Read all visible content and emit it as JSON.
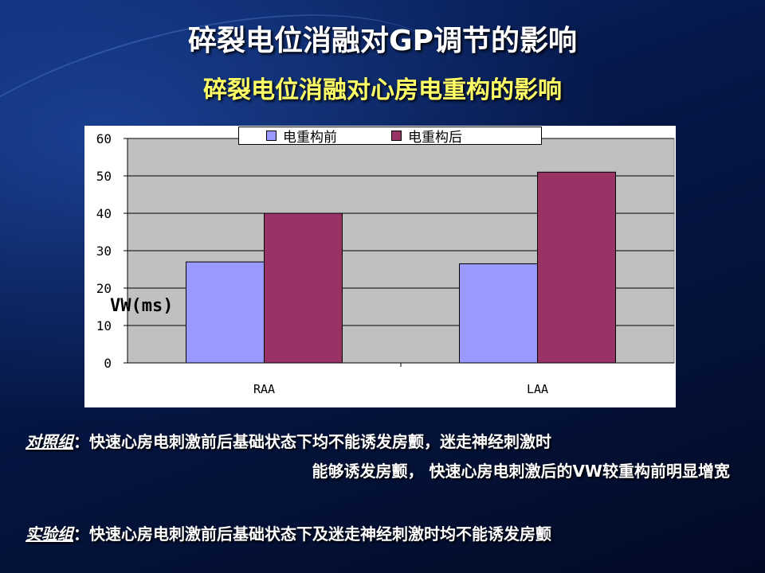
{
  "title": "碎裂电位消融对GP调节的影响",
  "subtitle": "碎裂电位消融对心房电重构的影响",
  "chart_data": {
    "type": "bar",
    "categories": [
      "RAA",
      "LAA"
    ],
    "series": [
      {
        "name": "电重构前",
        "values": [
          27,
          26.5
        ],
        "color": "#9999ff"
      },
      {
        "name": "电重构后",
        "values": [
          40,
          51
        ],
        "color": "#993366"
      }
    ],
    "ylabel": "VW(ms)",
    "xlabel": "",
    "ylim": [
      0,
      60
    ],
    "yticks": [
      0,
      10,
      20,
      30,
      40,
      50,
      60
    ],
    "grid": true,
    "legend_position": "top-center",
    "plot_background": "#c0c0c0"
  },
  "notes": {
    "control_label": "对照组",
    "control_line1": "：快速心房电刺激前后基础状态下均不能诱发房颤，迷走神经刺激时",
    "control_line2": "能够诱发房颤， 快速心房电刺激后的VW较重构前明显增宽",
    "experiment_label": "实验组",
    "experiment_line1": "：快速心房电刺激前后基础状态下及迷走神经刺激时均不能诱发房颤"
  }
}
